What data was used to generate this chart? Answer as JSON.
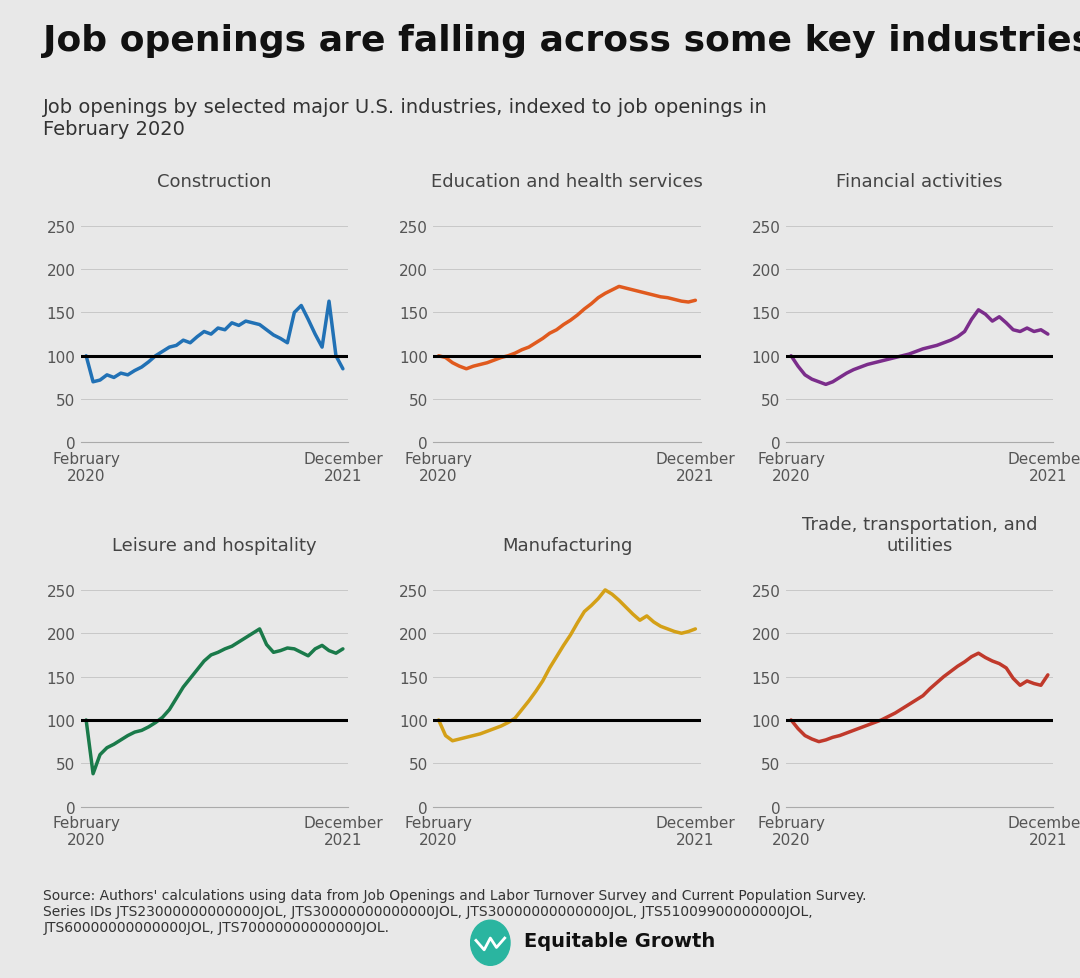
{
  "title": "Job openings are falling across some key industries",
  "subtitle": "Job openings by selected major U.S. industries, indexed to job openings in\nFebruary 2020",
  "source_text": "Source: Authors' calculations using data from Job Openings and Labor Turnover Survey and Current Population Survey.\nSeries IDs JTS23000000000000JOL, JTS30000000000000JOL, JTS30000000000000JOL, JTS51009900000000JOL,\nJTS60000000000000JOL, JTS70000000000000JOL.",
  "background_color": "#e8e8e8",
  "logo_text": "Equitable Growth",
  "logo_color": "#2ab5a0",
  "panels": [
    {
      "title": "Construction",
      "color": "#2171b5",
      "ylim": [
        0,
        280
      ],
      "yticks": [
        0,
        50,
        100,
        150,
        200,
        250
      ],
      "data": [
        100,
        70,
        72,
        78,
        75,
        80,
        78,
        83,
        87,
        93,
        100,
        105,
        110,
        112,
        118,
        115,
        122,
        128,
        125,
        132,
        130,
        138,
        135,
        140,
        138,
        136,
        130,
        124,
        120,
        115,
        150,
        158,
        142,
        125,
        110,
        163,
        100,
        85
      ]
    },
    {
      "title": "Education and health services",
      "color": "#e05a1e",
      "ylim": [
        0,
        280
      ],
      "yticks": [
        0,
        50,
        100,
        150,
        200,
        250
      ],
      "data": [
        100,
        98,
        92,
        88,
        85,
        88,
        90,
        92,
        95,
        98,
        100,
        103,
        107,
        110,
        115,
        120,
        126,
        130,
        136,
        141,
        147,
        154,
        160,
        167,
        172,
        176,
        180,
        178,
        176,
        174,
        172,
        170,
        168,
        167,
        165,
        163,
        162,
        164
      ]
    },
    {
      "title": "Financial activities",
      "color": "#7b2d8b",
      "ylim": [
        0,
        280
      ],
      "yticks": [
        0,
        50,
        100,
        150,
        200,
        250
      ],
      "data": [
        100,
        88,
        78,
        73,
        70,
        67,
        70,
        75,
        80,
        84,
        87,
        90,
        92,
        94,
        96,
        98,
        100,
        102,
        105,
        108,
        110,
        112,
        115,
        118,
        122,
        128,
        142,
        153,
        148,
        140,
        145,
        138,
        130,
        128,
        132,
        128,
        130,
        125
      ]
    },
    {
      "title": "Leisure and hospitality",
      "color": "#1a7a4a",
      "ylim": [
        0,
        280
      ],
      "yticks": [
        0,
        50,
        100,
        150,
        200,
        250
      ],
      "data": [
        100,
        38,
        60,
        68,
        72,
        77,
        82,
        86,
        88,
        92,
        97,
        103,
        112,
        125,
        138,
        148,
        158,
        168,
        175,
        178,
        182,
        185,
        190,
        195,
        200,
        205,
        187,
        178,
        180,
        183,
        182,
        178,
        174,
        182,
        186,
        180,
        177,
        182
      ]
    },
    {
      "title": "Manufacturing",
      "color": "#d4a017",
      "ylim": [
        0,
        280
      ],
      "yticks": [
        0,
        50,
        100,
        150,
        200,
        250
      ],
      "data": [
        100,
        82,
        76,
        78,
        80,
        82,
        84,
        87,
        90,
        93,
        97,
        102,
        112,
        122,
        133,
        145,
        160,
        173,
        186,
        198,
        212,
        225,
        232,
        240,
        250,
        245,
        238,
        230,
        222,
        215,
        220,
        213,
        208,
        205,
        202,
        200,
        202,
        205
      ]
    },
    {
      "title": "Trade, transportation, and\nutilities",
      "color": "#c0392b",
      "ylim": [
        0,
        280
      ],
      "yticks": [
        0,
        50,
        100,
        150,
        200,
        250
      ],
      "data": [
        100,
        90,
        82,
        78,
        75,
        77,
        80,
        82,
        85,
        88,
        91,
        94,
        97,
        100,
        104,
        108,
        113,
        118,
        123,
        128,
        136,
        143,
        150,
        156,
        162,
        167,
        173,
        177,
        172,
        168,
        165,
        160,
        148,
        140,
        145,
        142,
        140,
        152
      ]
    }
  ],
  "xtick_positions": [
    0,
    1
  ],
  "xtick_labels": [
    "February\n2020",
    "December\n2021"
  ],
  "n_points": 38,
  "title_fontsize": 26,
  "subtitle_fontsize": 14,
  "panel_title_fontsize": 13,
  "tick_fontsize": 11,
  "source_fontsize": 10
}
